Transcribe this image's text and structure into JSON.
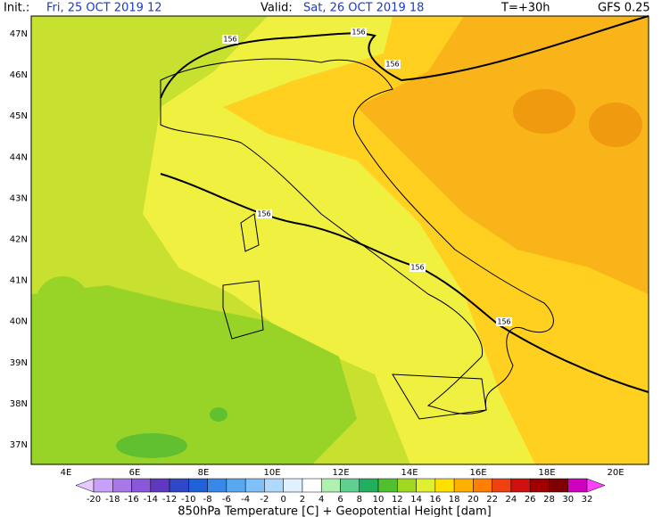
{
  "header": {
    "init_label": "Init.:",
    "init_time": "Fri, 25 OCT 2019  12",
    "valid_label": "Valid:",
    "valid_time": "Sat, 26 OCT 2019  18",
    "lead": "T=+30h",
    "model": "GFS 0.25"
  },
  "lat_labels": [
    "47N",
    "46N",
    "45N",
    "44N",
    "43N",
    "42N",
    "41N",
    "40N",
    "39N",
    "38N",
    "37N"
  ],
  "lon_labels": [
    "4E",
    "6E",
    "8E",
    "10E",
    "12E",
    "14E",
    "16E",
    "18E",
    "20E"
  ],
  "contour_labels": [
    "156",
    "156",
    "156",
    "156",
    "156",
    "156"
  ],
  "legend": {
    "ticks": [
      -20,
      -18,
      -16,
      -14,
      -12,
      -10,
      -8,
      -6,
      -4,
      -2,
      0,
      2,
      4,
      6,
      8,
      10,
      12,
      14,
      16,
      18,
      20,
      22,
      24,
      26,
      28,
      30,
      32
    ],
    "colors": [
      "#e8c8ff",
      "#c8a0f8",
      "#a878e8",
      "#8858d8",
      "#6038c0",
      "#3048c8",
      "#2060d8",
      "#3888e8",
      "#58a8f0",
      "#80c0f8",
      "#b0d8fc",
      "#e0f0ff",
      "#ffffff",
      "#b0f0b0",
      "#60d090",
      "#20b060",
      "#50c030",
      "#a0d820",
      "#e0f030",
      "#ffe000",
      "#ffb000",
      "#ff8000",
      "#f04010",
      "#d01010",
      "#a00000",
      "#800000",
      "#d000c0",
      "#ff40ff"
    ],
    "caption": "850hPa Temperature [C] + Geopotential Height [dam]"
  }
}
